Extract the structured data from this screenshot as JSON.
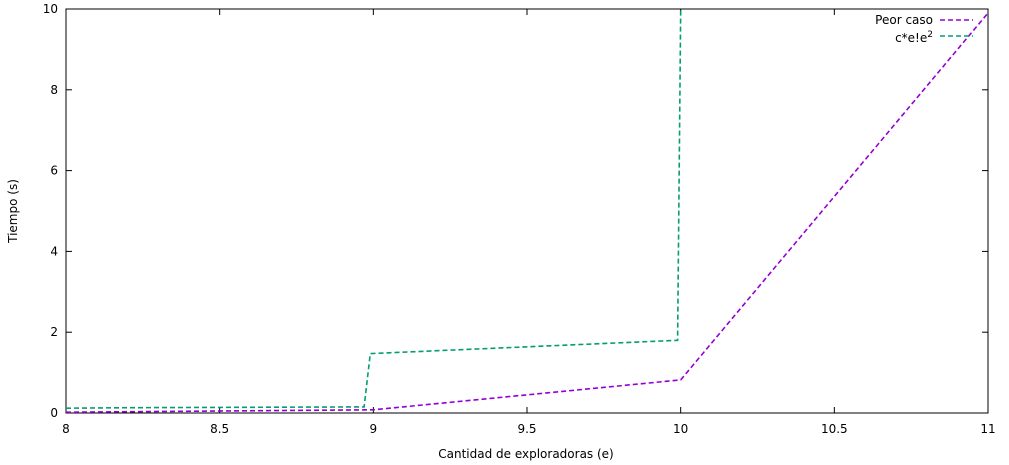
{
  "chart_data": {
    "type": "line",
    "title": "",
    "xlabel": "Cantidad de exploradoras (e)",
    "ylabel": "Tiempo (s)",
    "xlim": [
      8,
      11
    ],
    "ylim": [
      0,
      10
    ],
    "xticks": [
      8,
      8.5,
      9,
      9.5,
      10,
      10.5,
      11
    ],
    "xtick_labels": [
      "8",
      "8.5",
      "9",
      "9.5",
      "10",
      "10.5",
      "11"
    ],
    "yticks": [
      0,
      2,
      4,
      6,
      8,
      10
    ],
    "ytick_labels": [
      "0",
      "2",
      "4",
      "6",
      "8",
      "10"
    ],
    "grid": false,
    "legend_position": "top-right",
    "series": [
      {
        "name": "Peor caso",
        "color": "#9400d3",
        "dash": "dashed",
        "x": [
          8,
          9,
          10,
          11
        ],
        "y": [
          0.02,
          0.08,
          0.82,
          9.9
        ]
      },
      {
        "name_main": "c*e!e",
        "name_sup": "2",
        "color": "#009e73",
        "dash": "dashed",
        "x": [
          8,
          8.2,
          8.97,
          8.99,
          9.99,
          10.0
        ],
        "y": [
          0.12,
          0.13,
          0.15,
          1.47,
          1.8,
          10
        ]
      }
    ]
  }
}
